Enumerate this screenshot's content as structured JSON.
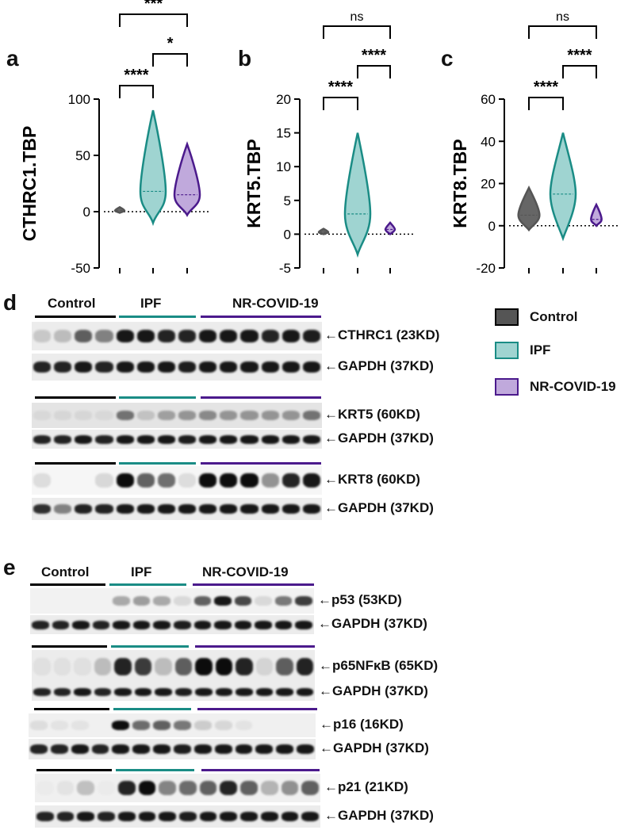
{
  "panels": {
    "a": "a",
    "b": "b",
    "c": "c",
    "d": "d",
    "e": "e"
  },
  "colors": {
    "control": "#555555",
    "ipf": "#1a8c85",
    "ipf_fill": "#9fd4d1",
    "nr": "#4b1a8c",
    "nr_fill": "#c0a9dc"
  },
  "chart_data": [
    {
      "type": "violin",
      "ylabel": "CTHRC1.TBP",
      "ylim": [
        -50,
        100
      ],
      "yticks": [
        "100",
        "50",
        "0",
        "-50"
      ],
      "groups": [
        "Control",
        "IPF",
        "NR-COVID-19"
      ],
      "medians": [
        1,
        18,
        15
      ],
      "maxima": [
        4,
        90,
        60
      ],
      "minima": [
        -1,
        -10,
        -3
      ],
      "significance": [
        {
          "pair": "Control-IPF",
          "label": "****"
        },
        {
          "pair": "Control-NR-COVID-19",
          "label": "***"
        },
        {
          "pair": "IPF-NR-COVID-19",
          "label": "*"
        }
      ]
    },
    {
      "type": "violin",
      "ylabel": "KRT5.TBP",
      "ylim": [
        -5,
        20
      ],
      "yticks": [
        "20",
        "15",
        "10",
        "5",
        "0",
        "-5"
      ],
      "groups": [
        "Control",
        "IPF",
        "NR-COVID-19"
      ],
      "medians": [
        0.3,
        3,
        0.7
      ],
      "maxima": [
        0.8,
        15,
        1.7
      ],
      "minima": [
        0,
        -3,
        0
      ],
      "significance": [
        {
          "pair": "Control-IPF",
          "label": "****"
        },
        {
          "pair": "Control-NR-COVID-19",
          "label": "ns"
        },
        {
          "pair": "IPF-NR-COVID-19",
          "label": "****"
        }
      ]
    },
    {
      "type": "violin",
      "ylabel": "KRT8.TBP",
      "ylim": [
        -20,
        60
      ],
      "yticks": [
        "60",
        "40",
        "20",
        "0",
        "-20"
      ],
      "groups": [
        "Control",
        "IPF",
        "NR-COVID-19"
      ],
      "medians": [
        5,
        15,
        3
      ],
      "maxima": [
        18,
        44,
        10
      ],
      "minima": [
        -2,
        -6,
        0
      ],
      "significance": [
        {
          "pair": "Control-IPF",
          "label": "****"
        },
        {
          "pair": "Control-NR-COVID-19",
          "label": "ns"
        },
        {
          "pair": "IPF-NR-COVID-19",
          "label": "****"
        }
      ]
    }
  ],
  "legend": {
    "control": "Control",
    "ipf": "IPF",
    "nr": "NR-COVID-19"
  },
  "blot_d": {
    "groups": [
      "Control",
      "IPF",
      "NR-COVID-19"
    ],
    "bands": [
      "CTHRC1 (23KD)",
      "GAPDH (37KD)",
      "KRT5 (60KD)",
      "GAPDH (37KD)",
      "KRT8 (60KD)",
      "GAPDH (37KD)"
    ]
  },
  "blot_e": {
    "groups": [
      "Control",
      "IPF",
      "NR-COVID-19"
    ],
    "bands": [
      "p53 (53KD)",
      "GAPDH (37KD)",
      "p65NFκB (65KD)",
      "GAPDH (37KD)",
      "p16 (16KD)",
      "GAPDH (37KD)",
      "p21 (21KD)",
      "GAPDH (37KD)"
    ]
  }
}
